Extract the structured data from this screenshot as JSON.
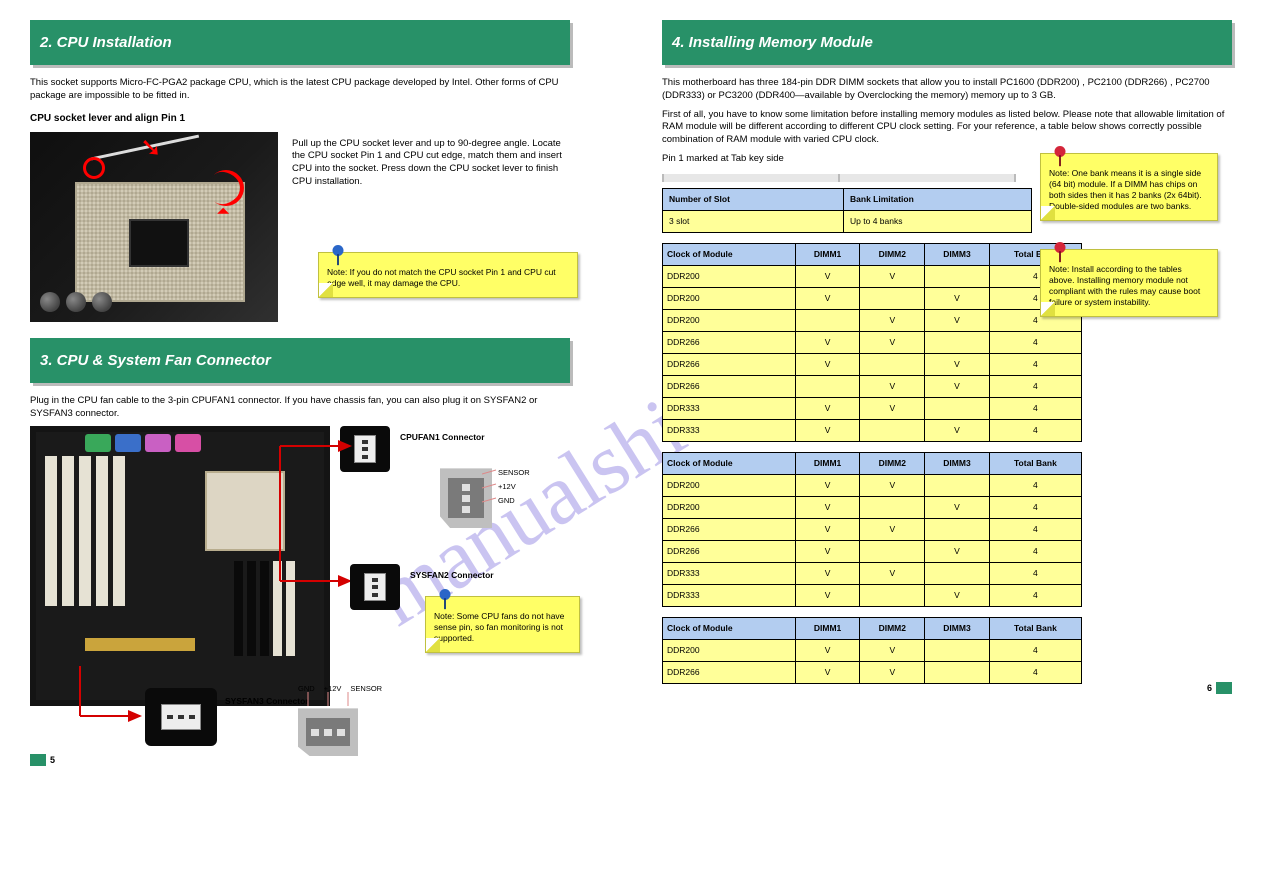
{
  "wm": "manualshive.com",
  "left": {
    "sec1_title": "2. CPU Installation",
    "sec1_intro": "This socket supports Micro-FC-PGA2 package CPU, which is the latest CPU package developed by Intel. Other forms of CPU package are impossible to be fitted in.",
    "step_label": "CPU socket lever and align Pin 1",
    "step_body": "Pull up the CPU socket lever and up to 90-degree angle. Locate the CPU socket Pin 1 and CPU cut edge, match them and insert CPU into the socket. Press down the CPU socket lever to finish CPU installation.",
    "note1": "Note: If you do not match the CPU socket Pin 1 and CPU cut edge well, it may damage the CPU.",
    "sec2_title": "3. CPU & System Fan Connector",
    "sec2_body": "Plug in the CPU fan cable to the 3-pin CPUFAN1 connector. If you have chassis fan, you can also plug it on SYSFAN2 or SYSFAN3 connector.",
    "fan_pins": {
      "p1": "GND",
      "p2": "+12V",
      "p3": "SENSOR"
    },
    "fan_labels": {
      "cpu": "CPUFAN1 Connector",
      "sys2": "SYSFAN2 Connector",
      "sys3": "SYSFAN3 Connector"
    },
    "note2": "Note: Some CPU fans do not have sense pin, so fan monitoring is not supported.",
    "footer": "5"
  },
  "right": {
    "sec_title": "4. Installing Memory Module",
    "intro1": "This motherboard has three 184-pin DDR DIMM sockets that allow you to install PC1600 (DDR200) , PC2100 (DDR266) , PC2700 (DDR333) or PC3200 (DDR400—available by Overclocking the memory) memory up to 3 GB.",
    "intro2": "First of all, you have to know some limitation before installing memory modules as listed below. Please note that allowable limitation of RAM module will be different according to different CPU clock setting. For your reference, a table below shows correctly possible combination of RAM module with varied CPU clock.",
    "ruler_label": "Pin 1 marked at Tab key side",
    "bank_table": {
      "hdr1": "Number of Slot",
      "hdr2": "Bank Limitation",
      "r1": [
        "3 slot",
        "Up to 4 banks"
      ]
    },
    "combo1": {
      "hdr": [
        "Clock of Module",
        "DIMM1",
        "DIMM2",
        "DIMM3",
        "Total Bank"
      ],
      "rows": [
        [
          "DDR200",
          "V",
          "V",
          "",
          "4"
        ],
        [
          "DDR200",
          "V",
          "",
          "V",
          "4"
        ],
        [
          "DDR200",
          "",
          "V",
          "V",
          "4"
        ],
        [
          "DDR266",
          "V",
          "V",
          "",
          "4"
        ],
        [
          "DDR266",
          "V",
          "",
          "V",
          "4"
        ],
        [
          "DDR266",
          "",
          "V",
          "V",
          "4"
        ],
        [
          "DDR333",
          "V",
          "V",
          "",
          "4"
        ],
        [
          "DDR333",
          "V",
          "",
          "V",
          "4"
        ]
      ]
    },
    "combo2": {
      "hdr": [
        "Clock of Module",
        "DIMM1",
        "DIMM2",
        "DIMM3",
        "Total Bank"
      ],
      "rows": [
        [
          "DDR200",
          "V",
          "V",
          "",
          "4"
        ],
        [
          "DDR200",
          "V",
          "",
          "V",
          "4"
        ],
        [
          "DDR266",
          "V",
          "V",
          "",
          "4"
        ],
        [
          "DDR266",
          "V",
          "",
          "V",
          "4"
        ],
        [
          "DDR333",
          "V",
          "V",
          "",
          "4"
        ],
        [
          "DDR333",
          "V",
          "",
          "V",
          "4"
        ]
      ]
    },
    "combo3": {
      "hdr": [
        "Clock of Module",
        "DIMM1",
        "DIMM2",
        "DIMM3",
        "Total Bank"
      ],
      "rows": [
        [
          "DDR200",
          "V",
          "V",
          "",
          "4"
        ],
        [
          "DDR266",
          "V",
          "V",
          "",
          "4"
        ]
      ]
    },
    "note1": "Note: One bank means it is a single side (64 bit) module. If a DIMM has chips on both sides then it has 2 banks (2x 64bit). Double-sided modules are two banks.",
    "note2": "Note: Install according to the tables above. Installing memory module not compliant with the rules may cause boot failure or system instability.",
    "footer": "6"
  },
  "colors": {
    "banner": "#289168",
    "note_bg": "#ffff66",
    "th_bg": "#b3cdf0",
    "td_bg": "#ffff99"
  }
}
